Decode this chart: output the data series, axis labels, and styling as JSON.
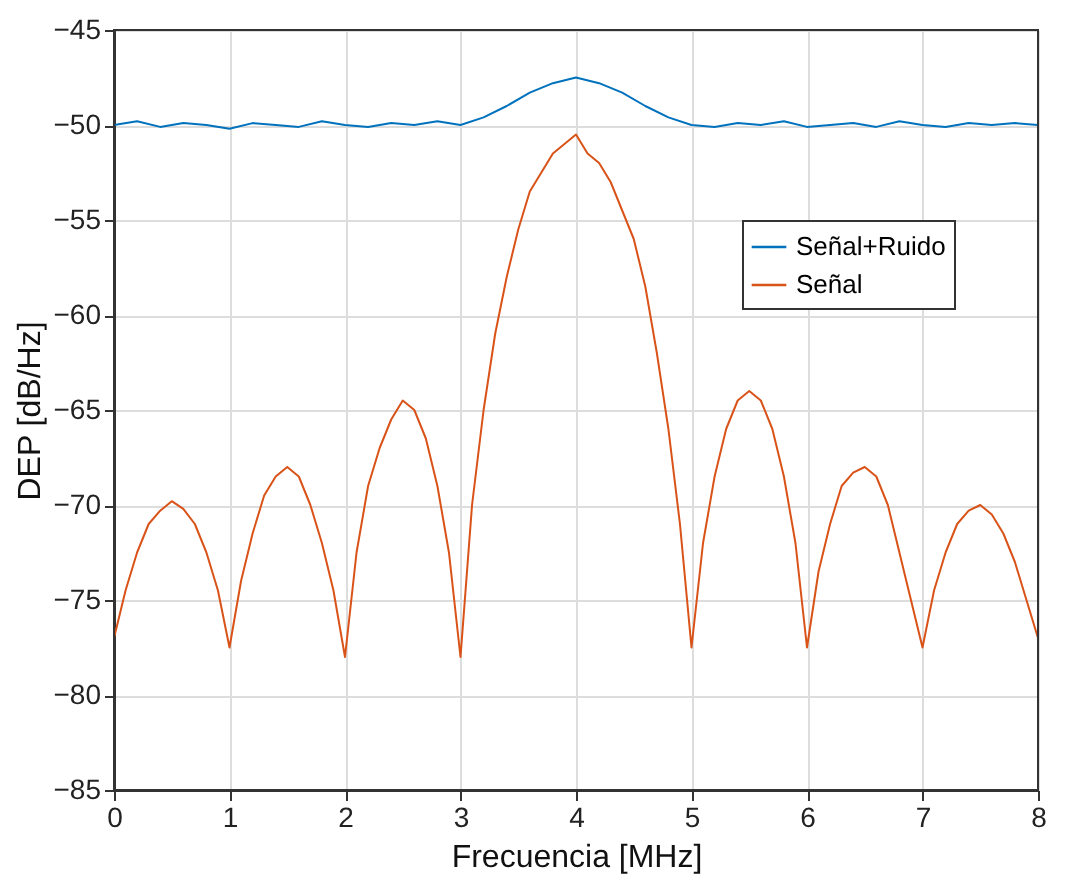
{
  "chart_data": {
    "type": "line",
    "xlabel": "Frecuencia [MHz]",
    "ylabel": "DEP [dB/Hz]",
    "xlim": [
      0,
      8
    ],
    "xticks": [
      0,
      1,
      2,
      3,
      4,
      5,
      6,
      7,
      8
    ],
    "ylim": [
      -85,
      -45
    ],
    "yticks": [
      -85,
      -80,
      -75,
      -70,
      -65,
      -60,
      -55,
      -50,
      -45
    ],
    "grid": true,
    "legend": "right",
    "line_style": "solid",
    "marker": "none",
    "series": [
      {
        "name": "Señal+Ruido",
        "color": "#0072bd",
        "x": [
          0,
          0.2,
          0.4,
          0.6,
          0.8,
          1,
          1.2,
          1.4,
          1.6,
          1.8,
          2,
          2.2,
          2.4,
          2.6,
          2.8,
          3,
          3.2,
          3.4,
          3.6,
          3.8,
          4,
          4.2,
          4.4,
          4.6,
          4.8,
          5,
          5.2,
          5.4,
          5.6,
          5.8,
          6,
          6.2,
          6.4,
          6.6,
          6.8,
          7,
          7.2,
          7.4,
          7.6,
          7.8,
          8
        ],
        "values": [
          -50,
          -49.8,
          -50.1,
          -49.9,
          -50,
          -50.2,
          -49.9,
          -50,
          -50.1,
          -49.8,
          -50,
          -50.1,
          -49.9,
          -50,
          -49.8,
          -50,
          -49.6,
          -49,
          -48.3,
          -47.8,
          -47.5,
          -47.8,
          -48.3,
          -49,
          -49.6,
          -50,
          -50.1,
          -49.9,
          -50,
          -49.8,
          -50.1,
          -50,
          -49.9,
          -50.1,
          -49.8,
          -50,
          -50.1,
          -49.9,
          -50,
          -49.9,
          -50
        ]
      },
      {
        "name": "Señal",
        "color": "#d95319",
        "x": [
          0,
          0.1,
          0.2,
          0.3,
          0.4,
          0.5,
          0.6,
          0.7,
          0.8,
          0.9,
          1,
          1.1,
          1.2,
          1.3,
          1.4,
          1.5,
          1.6,
          1.7,
          1.8,
          1.9,
          2,
          2.1,
          2.2,
          2.3,
          2.4,
          2.5,
          2.6,
          2.7,
          2.8,
          2.9,
          3,
          3.1,
          3.2,
          3.3,
          3.4,
          3.5,
          3.6,
          3.7,
          3.8,
          3.9,
          4,
          4.1,
          4.2,
          4.3,
          4.4,
          4.5,
          4.6,
          4.7,
          4.8,
          4.9,
          5,
          5.1,
          5.2,
          5.3,
          5.4,
          5.5,
          5.6,
          5.7,
          5.8,
          5.9,
          6,
          6.1,
          6.2,
          6.3,
          6.4,
          6.5,
          6.6,
          6.7,
          6.8,
          6.9,
          7,
          7.1,
          7.2,
          7.3,
          7.4,
          7.5,
          7.6,
          7.7,
          7.8,
          7.9,
          8
        ],
        "values": [
          -77,
          -74.5,
          -72.5,
          -71,
          -70.3,
          -69.8,
          -70.2,
          -71,
          -72.5,
          -74.5,
          -77.5,
          -74,
          -71.5,
          -69.5,
          -68.5,
          -68,
          -68.5,
          -70,
          -72,
          -74.5,
          -78,
          -72.5,
          -69,
          -67,
          -65.5,
          -64.5,
          -65,
          -66.5,
          -69,
          -72.5,
          -78,
          -70,
          -65,
          -61,
          -58,
          -55.5,
          -53.5,
          -52.5,
          -51.5,
          -51,
          -50.5,
          -51.5,
          -52,
          -53,
          -54.5,
          -56,
          -58.5,
          -62,
          -66,
          -71,
          -77.5,
          -72,
          -68.5,
          -66,
          -64.5,
          -64,
          -64.5,
          -66,
          -68.5,
          -72,
          -77.5,
          -73.5,
          -71,
          -69,
          -68.3,
          -68,
          -68.5,
          -70,
          -72.5,
          -75,
          -77.5,
          -74.5,
          -72.5,
          -71,
          -70.3,
          -70,
          -70.5,
          -71.5,
          -73,
          -75,
          -77
        ]
      }
    ]
  }
}
